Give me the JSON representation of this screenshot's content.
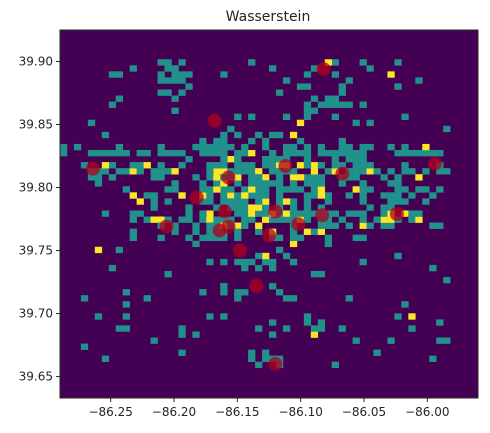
{
  "chart_data": {
    "type": "heatmap",
    "title": "Wasserstein",
    "xlabel": "",
    "ylabel": "",
    "xlim": [
      -86.29,
      -85.96
    ],
    "ylim": [
      39.633,
      39.925
    ],
    "x_ticks": [
      {
        "value": -86.25,
        "label": "−86.25"
      },
      {
        "value": -86.2,
        "label": "−86.20"
      },
      {
        "value": -86.15,
        "label": "−86.15"
      },
      {
        "value": -86.1,
        "label": "−86.10"
      },
      {
        "value": -86.05,
        "label": "−86.05"
      },
      {
        "value": -86.0,
        "label": "−86.00"
      }
    ],
    "y_ticks": [
      {
        "value": 39.65,
        "label": "39.65"
      },
      {
        "value": 39.7,
        "label": "39.70"
      },
      {
        "value": 39.75,
        "label": "39.75"
      },
      {
        "value": 39.8,
        "label": "39.80"
      },
      {
        "value": 39.85,
        "label": "39.85"
      },
      {
        "value": 39.9,
        "label": "39.90"
      }
    ],
    "grid": false,
    "colors": {
      "background": "#440154",
      "low": "#21918c",
      "high": "#fde725",
      "marker": "#b0001e"
    },
    "points": [
      {
        "lon": -86.264,
        "lat": 39.815
      },
      {
        "lon": -86.182,
        "lat": 39.792
      },
      {
        "lon": -86.206,
        "lat": 39.769
      },
      {
        "lon": -86.168,
        "lat": 39.853
      },
      {
        "lon": -86.157,
        "lat": 39.808
      },
      {
        "lon": -86.16,
        "lat": 39.781
      },
      {
        "lon": -86.164,
        "lat": 39.766
      },
      {
        "lon": -86.157,
        "lat": 39.769
      },
      {
        "lon": -86.148,
        "lat": 39.75
      },
      {
        "lon": -86.135,
        "lat": 39.722
      },
      {
        "lon": -86.125,
        "lat": 39.762
      },
      {
        "lon": -86.12,
        "lat": 39.781
      },
      {
        "lon": -86.112,
        "lat": 39.817
      },
      {
        "lon": -86.102,
        "lat": 39.771
      },
      {
        "lon": -86.083,
        "lat": 39.778
      },
      {
        "lon": -86.082,
        "lat": 39.894
      },
      {
        "lon": -86.067,
        "lat": 39.811
      },
      {
        "lon": -86.024,
        "lat": 39.779
      },
      {
        "lon": -85.994,
        "lat": 39.819
      },
      {
        "lon": -86.12,
        "lat": 39.66
      }
    ],
    "cell_size_deg": {
      "lon": 0.0055,
      "lat": 0.0048
    },
    "bands": [
      {
        "lat": 39.825,
        "lon_range": [
          -86.29,
          -85.975
        ],
        "density": 0.55,
        "high": 0.12
      },
      {
        "lat": 39.813,
        "lon_range": [
          -86.275,
          -85.985
        ],
        "density": 0.55,
        "high": 0.18
      },
      {
        "lat": 39.793,
        "lon_range": [
          -86.24,
          -85.99
        ],
        "density": 0.45,
        "high": 0.15
      },
      {
        "lat": 39.775,
        "lon_range": [
          -86.23,
          -86.0
        ],
        "density": 0.55,
        "high": 0.22
      },
      {
        "lat": 39.76,
        "lon_range": [
          -86.2,
          -86.05
        ],
        "density": 0.45,
        "high": 0.15
      },
      {
        "lat": 39.74,
        "lon_range": [
          -86.17,
          -86.1
        ],
        "density": 0.5,
        "high": 0.15
      },
      {
        "lat": 39.715,
        "lon_range": [
          -86.16,
          -86.11
        ],
        "density": 0.45,
        "high": 0.15
      },
      {
        "lat": 39.69,
        "lon_range": [
          -86.15,
          -86.08
        ],
        "density": 0.3,
        "high": 0.1
      },
      {
        "lat": 39.665,
        "lon_range": [
          -86.14,
          -86.09
        ],
        "density": 0.3,
        "high": 0.12
      }
    ],
    "clusters": [
      {
        "lon": -86.155,
        "lat": 39.79,
        "r_lon": 0.03,
        "r_lat": 0.035,
        "density": 0.7,
        "high": 0.18
      },
      {
        "lon": -86.11,
        "lat": 39.8,
        "r_lon": 0.03,
        "r_lat": 0.03,
        "density": 0.7,
        "high": 0.2
      },
      {
        "lon": -86.07,
        "lat": 39.82,
        "r_lon": 0.02,
        "r_lat": 0.02,
        "density": 0.6,
        "high": 0.15
      },
      {
        "lon": -86.205,
        "lat": 39.89,
        "r_lon": 0.018,
        "r_lat": 0.02,
        "density": 0.35,
        "high": 0.0
      },
      {
        "lon": -86.08,
        "lat": 39.875,
        "r_lon": 0.025,
        "r_lat": 0.025,
        "density": 0.3,
        "high": 0.05
      },
      {
        "lon": -86.03,
        "lat": 39.79,
        "r_lon": 0.03,
        "r_lat": 0.02,
        "density": 0.35,
        "high": 0.05
      },
      {
        "lon": -86.14,
        "lat": 39.83,
        "r_lon": 0.045,
        "r_lat": 0.02,
        "density": 0.4,
        "high": 0.1
      }
    ]
  }
}
